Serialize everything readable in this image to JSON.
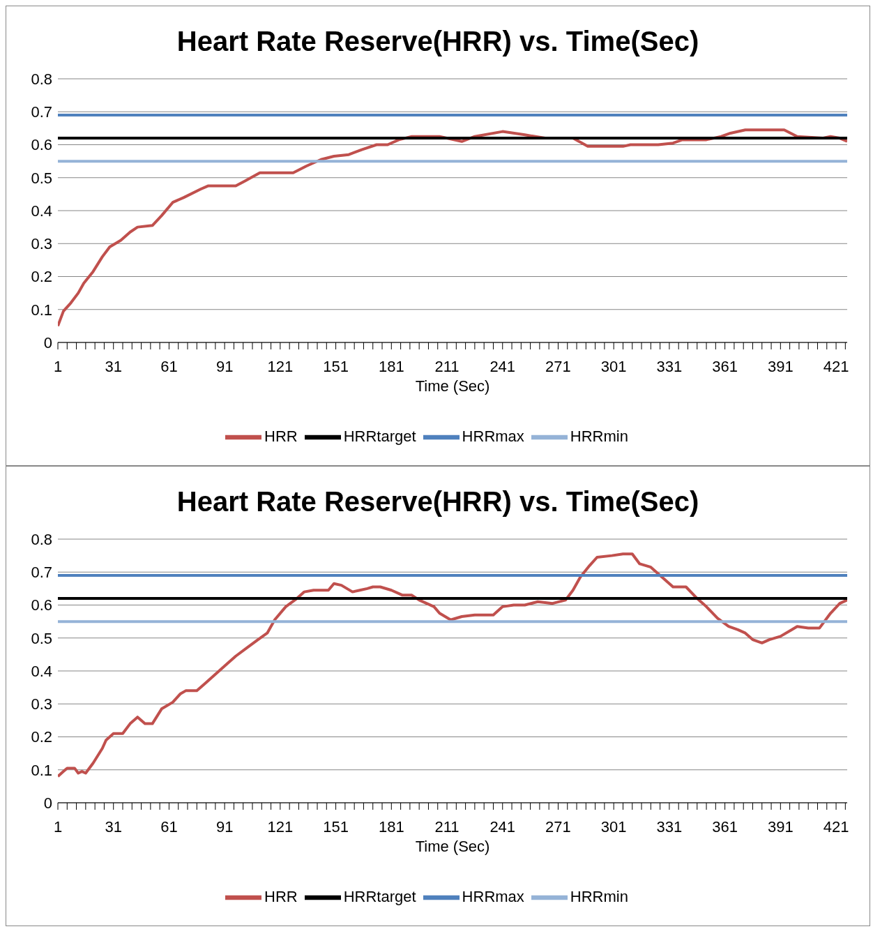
{
  "chart_data": [
    {
      "type": "line",
      "title": "Heart Rate Reserve(HRR) vs. Time(Sec)",
      "xlabel": "Time (Sec)",
      "xlim": [
        1,
        427
      ],
      "ylim": [
        0,
        0.8
      ],
      "yticks": [
        0,
        0.1,
        0.2,
        0.3,
        0.4,
        0.5,
        0.6,
        0.7,
        0.8
      ],
      "xticks": [
        1,
        {
          "value": 6,
          "label": null
        },
        {
          "value": 11,
          "label": null
        },
        {
          "value": 16,
          "label": null
        },
        {
          "value": 21,
          "label": null
        },
        {
          "value": 26,
          "label": null
        },
        31,
        {
          "value": 36,
          "label": null
        },
        {
          "value": 41,
          "label": null
        },
        {
          "value": 46,
          "label": null
        },
        {
          "value": 51,
          "label": null
        },
        {
          "value": 56,
          "label": null
        },
        61,
        {
          "value": 66,
          "label": null
        },
        {
          "value": 71,
          "label": null
        },
        {
          "value": 76,
          "label": null
        },
        {
          "value": 81,
          "label": null
        },
        {
          "value": 86,
          "label": null
        },
        91,
        {
          "value": 96,
          "label": null
        },
        {
          "value": 101,
          "label": null
        },
        {
          "value": 106,
          "label": null
        },
        {
          "value": 111,
          "label": null
        },
        {
          "value": 116,
          "label": null
        },
        121,
        {
          "value": 126,
          "label": null
        },
        {
          "value": 131,
          "label": null
        },
        {
          "value": 136,
          "label": null
        },
        {
          "value": 141,
          "label": null
        },
        {
          "value": 146,
          "label": null
        },
        151,
        {
          "value": 156,
          "label": null
        },
        {
          "value": 161,
          "label": null
        },
        {
          "value": 166,
          "label": null
        },
        {
          "value": 171,
          "label": null
        },
        {
          "value": 176,
          "label": null
        },
        181,
        {
          "value": 186,
          "label": null
        },
        {
          "value": 191,
          "label": null
        },
        {
          "value": 196,
          "label": null
        },
        {
          "value": 201,
          "label": null
        },
        {
          "value": 206,
          "label": null
        },
        211,
        {
          "value": 216,
          "label": null
        },
        {
          "value": 221,
          "label": null
        },
        {
          "value": 226,
          "label": null
        },
        {
          "value": 231,
          "label": null
        },
        {
          "value": 236,
          "label": null
        },
        241,
        {
          "value": 246,
          "label": null
        },
        {
          "value": 251,
          "label": null
        },
        {
          "value": 256,
          "label": null
        },
        {
          "value": 261,
          "label": null
        },
        {
          "value": 266,
          "label": null
        },
        271,
        {
          "value": 276,
          "label": null
        },
        {
          "value": 281,
          "label": null
        },
        {
          "value": 286,
          "label": null
        },
        {
          "value": 291,
          "label": null
        },
        {
          "value": 296,
          "label": null
        },
        301,
        {
          "value": 306,
          "label": null
        },
        {
          "value": 311,
          "label": null
        },
        {
          "value": 316,
          "label": null
        },
        {
          "value": 321,
          "label": null
        },
        {
          "value": 326,
          "label": null
        },
        331,
        {
          "value": 336,
          "label": null
        },
        {
          "value": 341,
          "label": null
        },
        {
          "value": 346,
          "label": null
        },
        {
          "value": 351,
          "label": null
        },
        {
          "value": 356,
          "label": null
        },
        361,
        {
          "value": 366,
          "label": null
        },
        {
          "value": 371,
          "label": null
        },
        {
          "value": 376,
          "label": null
        },
        {
          "value": 381,
          "label": null
        },
        {
          "value": 386,
          "label": null
        },
        391,
        {
          "value": 396,
          "label": null
        },
        {
          "value": 401,
          "label": null
        },
        {
          "value": 406,
          "label": null
        },
        {
          "value": 411,
          "label": null
        },
        {
          "value": 416,
          "label": null
        },
        421,
        {
          "value": 426,
          "label": null
        }
      ],
      "grid": "y",
      "legend": "bottom",
      "series": [
        {
          "name": "HRR",
          "color": "#c0504d",
          "x": [
            1,
            4,
            8,
            12,
            15,
            20,
            25,
            29,
            35,
            40,
            44,
            52,
            57,
            63,
            69,
            78,
            82,
            97,
            102,
            110,
            128,
            135,
            143,
            150,
            158,
            165,
            173,
            179,
            185,
            192,
            207,
            219,
            226,
            241,
            253,
            264,
            279,
            287,
            306,
            310,
            325,
            333,
            338,
            351,
            359,
            364,
            372,
            393,
            400,
            414,
            418,
            423,
            427
          ],
          "values": [
            0.05,
            0.095,
            0.12,
            0.15,
            0.18,
            0.215,
            0.26,
            0.29,
            0.31,
            0.335,
            0.35,
            0.355,
            0.385,
            0.425,
            0.44,
            0.465,
            0.475,
            0.475,
            0.49,
            0.515,
            0.515,
            0.535,
            0.555,
            0.565,
            0.57,
            0.585,
            0.6,
            0.6,
            0.615,
            0.625,
            0.625,
            0.61,
            0.625,
            0.64,
            0.63,
            0.62,
            0.62,
            0.595,
            0.595,
            0.6,
            0.6,
            0.605,
            0.615,
            0.615,
            0.625,
            0.635,
            0.645,
            0.645,
            0.625,
            0.62,
            0.625,
            0.62,
            0.61
          ]
        },
        {
          "name": "HRRtarget",
          "color": "#000000",
          "x": [
            1,
            427
          ],
          "values": [
            0.62,
            0.62
          ]
        },
        {
          "name": "HRRmax",
          "color": "#4f81bd",
          "x": [
            1,
            427
          ],
          "values": [
            0.69,
            0.69
          ]
        },
        {
          "name": "HRRmin",
          "color": "#95b3d7",
          "x": [
            1,
            427
          ],
          "values": [
            0.55,
            0.55
          ]
        }
      ]
    },
    {
      "type": "line",
      "title": "Heart Rate Reserve(HRR) vs. Time(Sec)",
      "xlabel": "Time (Sec)",
      "xlim": [
        1,
        427
      ],
      "ylim": [
        0,
        0.8
      ],
      "yticks": [
        0,
        0.1,
        0.2,
        0.3,
        0.4,
        0.5,
        0.6,
        0.7,
        0.8
      ],
      "xticks": [
        1,
        {
          "value": 6,
          "label": null
        },
        {
          "value": 11,
          "label": null
        },
        {
          "value": 16,
          "label": null
        },
        {
          "value": 21,
          "label": null
        },
        {
          "value": 26,
          "label": null
        },
        31,
        {
          "value": 36,
          "label": null
        },
        {
          "value": 41,
          "label": null
        },
        {
          "value": 46,
          "label": null
        },
        {
          "value": 51,
          "label": null
        },
        {
          "value": 56,
          "label": null
        },
        61,
        {
          "value": 66,
          "label": null
        },
        {
          "value": 71,
          "label": null
        },
        {
          "value": 76,
          "label": null
        },
        {
          "value": 81,
          "label": null
        },
        {
          "value": 86,
          "label": null
        },
        91,
        {
          "value": 96,
          "label": null
        },
        {
          "value": 101,
          "label": null
        },
        {
          "value": 106,
          "label": null
        },
        {
          "value": 111,
          "label": null
        },
        {
          "value": 116,
          "label": null
        },
        121,
        {
          "value": 126,
          "label": null
        },
        {
          "value": 131,
          "label": null
        },
        {
          "value": 136,
          "label": null
        },
        {
          "value": 141,
          "label": null
        },
        {
          "value": 146,
          "label": null
        },
        151,
        {
          "value": 156,
          "label": null
        },
        {
          "value": 161,
          "label": null
        },
        {
          "value": 166,
          "label": null
        },
        {
          "value": 171,
          "label": null
        },
        {
          "value": 176,
          "label": null
        },
        181,
        {
          "value": 186,
          "label": null
        },
        {
          "value": 191,
          "label": null
        },
        {
          "value": 196,
          "label": null
        },
        {
          "value": 201,
          "label": null
        },
        {
          "value": 206,
          "label": null
        },
        211,
        {
          "value": 216,
          "label": null
        },
        {
          "value": 221,
          "label": null
        },
        {
          "value": 226,
          "label": null
        },
        {
          "value": 231,
          "label": null
        },
        {
          "value": 236,
          "label": null
        },
        241,
        {
          "value": 246,
          "label": null
        },
        {
          "value": 251,
          "label": null
        },
        {
          "value": 256,
          "label": null
        },
        {
          "value": 261,
          "label": null
        },
        {
          "value": 266,
          "label": null
        },
        271,
        {
          "value": 276,
          "label": null
        },
        {
          "value": 281,
          "label": null
        },
        {
          "value": 286,
          "label": null
        },
        {
          "value": 291,
          "label": null
        },
        {
          "value": 296,
          "label": null
        },
        301,
        {
          "value": 306,
          "label": null
        },
        {
          "value": 311,
          "label": null
        },
        {
          "value": 316,
          "label": null
        },
        {
          "value": 321,
          "label": null
        },
        {
          "value": 326,
          "label": null
        },
        331,
        {
          "value": 336,
          "label": null
        },
        {
          "value": 341,
          "label": null
        },
        {
          "value": 346,
          "label": null
        },
        {
          "value": 351,
          "label": null
        },
        {
          "value": 356,
          "label": null
        },
        361,
        {
          "value": 366,
          "label": null
        },
        {
          "value": 371,
          "label": null
        },
        {
          "value": 376,
          "label": null
        },
        {
          "value": 381,
          "label": null
        },
        {
          "value": 386,
          "label": null
        },
        391,
        {
          "value": 396,
          "label": null
        },
        {
          "value": 401,
          "label": null
        },
        {
          "value": 406,
          "label": null
        },
        {
          "value": 411,
          "label": null
        },
        {
          "value": 416,
          "label": null
        },
        421,
        {
          "value": 426,
          "label": null
        }
      ],
      "grid": "y",
      "legend": "bottom",
      "series": [
        {
          "name": "HRR",
          "color": "#c0504d",
          "x": [
            1,
            4,
            6,
            10,
            12,
            14,
            16,
            20,
            25,
            27,
            31,
            36,
            40,
            44,
            48,
            52,
            57,
            63,
            67,
            70,
            76,
            80,
            86,
            92,
            97,
            103,
            109,
            114,
            118,
            124,
            130,
            134,
            139,
            143,
            147,
            150,
            154,
            160,
            164,
            168,
            171,
            175,
            181,
            187,
            192,
            196,
            204,
            207,
            213,
            219,
            226,
            236,
            241,
            247,
            253,
            260,
            268,
            275,
            279,
            283,
            288,
            292,
            300,
            306,
            311,
            315,
            321,
            326,
            333,
            340,
            346,
            351,
            357,
            363,
            368,
            372,
            376,
            381,
            385,
            391,
            397,
            400,
            406,
            412,
            418,
            423,
            427
          ],
          "values": [
            0.08,
            0.095,
            0.105,
            0.105,
            0.09,
            0.095,
            0.09,
            0.12,
            0.165,
            0.19,
            0.21,
            0.21,
            0.24,
            0.26,
            0.24,
            0.24,
            0.285,
            0.305,
            0.33,
            0.34,
            0.34,
            0.36,
            0.39,
            0.42,
            0.445,
            0.47,
            0.495,
            0.515,
            0.555,
            0.595,
            0.62,
            0.64,
            0.645,
            0.645,
            0.645,
            0.665,
            0.66,
            0.64,
            0.645,
            0.65,
            0.655,
            0.655,
            0.645,
            0.63,
            0.63,
            0.615,
            0.595,
            0.575,
            0.555,
            0.565,
            0.57,
            0.57,
            0.595,
            0.6,
            0.6,
            0.61,
            0.605,
            0.615,
            0.645,
            0.685,
            0.72,
            0.745,
            0.75,
            0.755,
            0.755,
            0.725,
            0.715,
            0.69,
            0.655,
            0.655,
            0.62,
            0.595,
            0.56,
            0.535,
            0.525,
            0.515,
            0.495,
            0.485,
            0.495,
            0.505,
            0.525,
            0.535,
            0.53,
            0.53,
            0.575,
            0.605,
            0.615
          ]
        },
        {
          "name": "HRRtarget",
          "color": "#000000",
          "x": [
            1,
            427
          ],
          "values": [
            0.62,
            0.62
          ]
        },
        {
          "name": "HRRmax",
          "color": "#4f81bd",
          "x": [
            1,
            427
          ],
          "values": [
            0.69,
            0.69
          ]
        },
        {
          "name": "HRRmin",
          "color": "#95b3d7",
          "x": [
            1,
            427
          ],
          "values": [
            0.55,
            0.55
          ]
        }
      ]
    }
  ]
}
